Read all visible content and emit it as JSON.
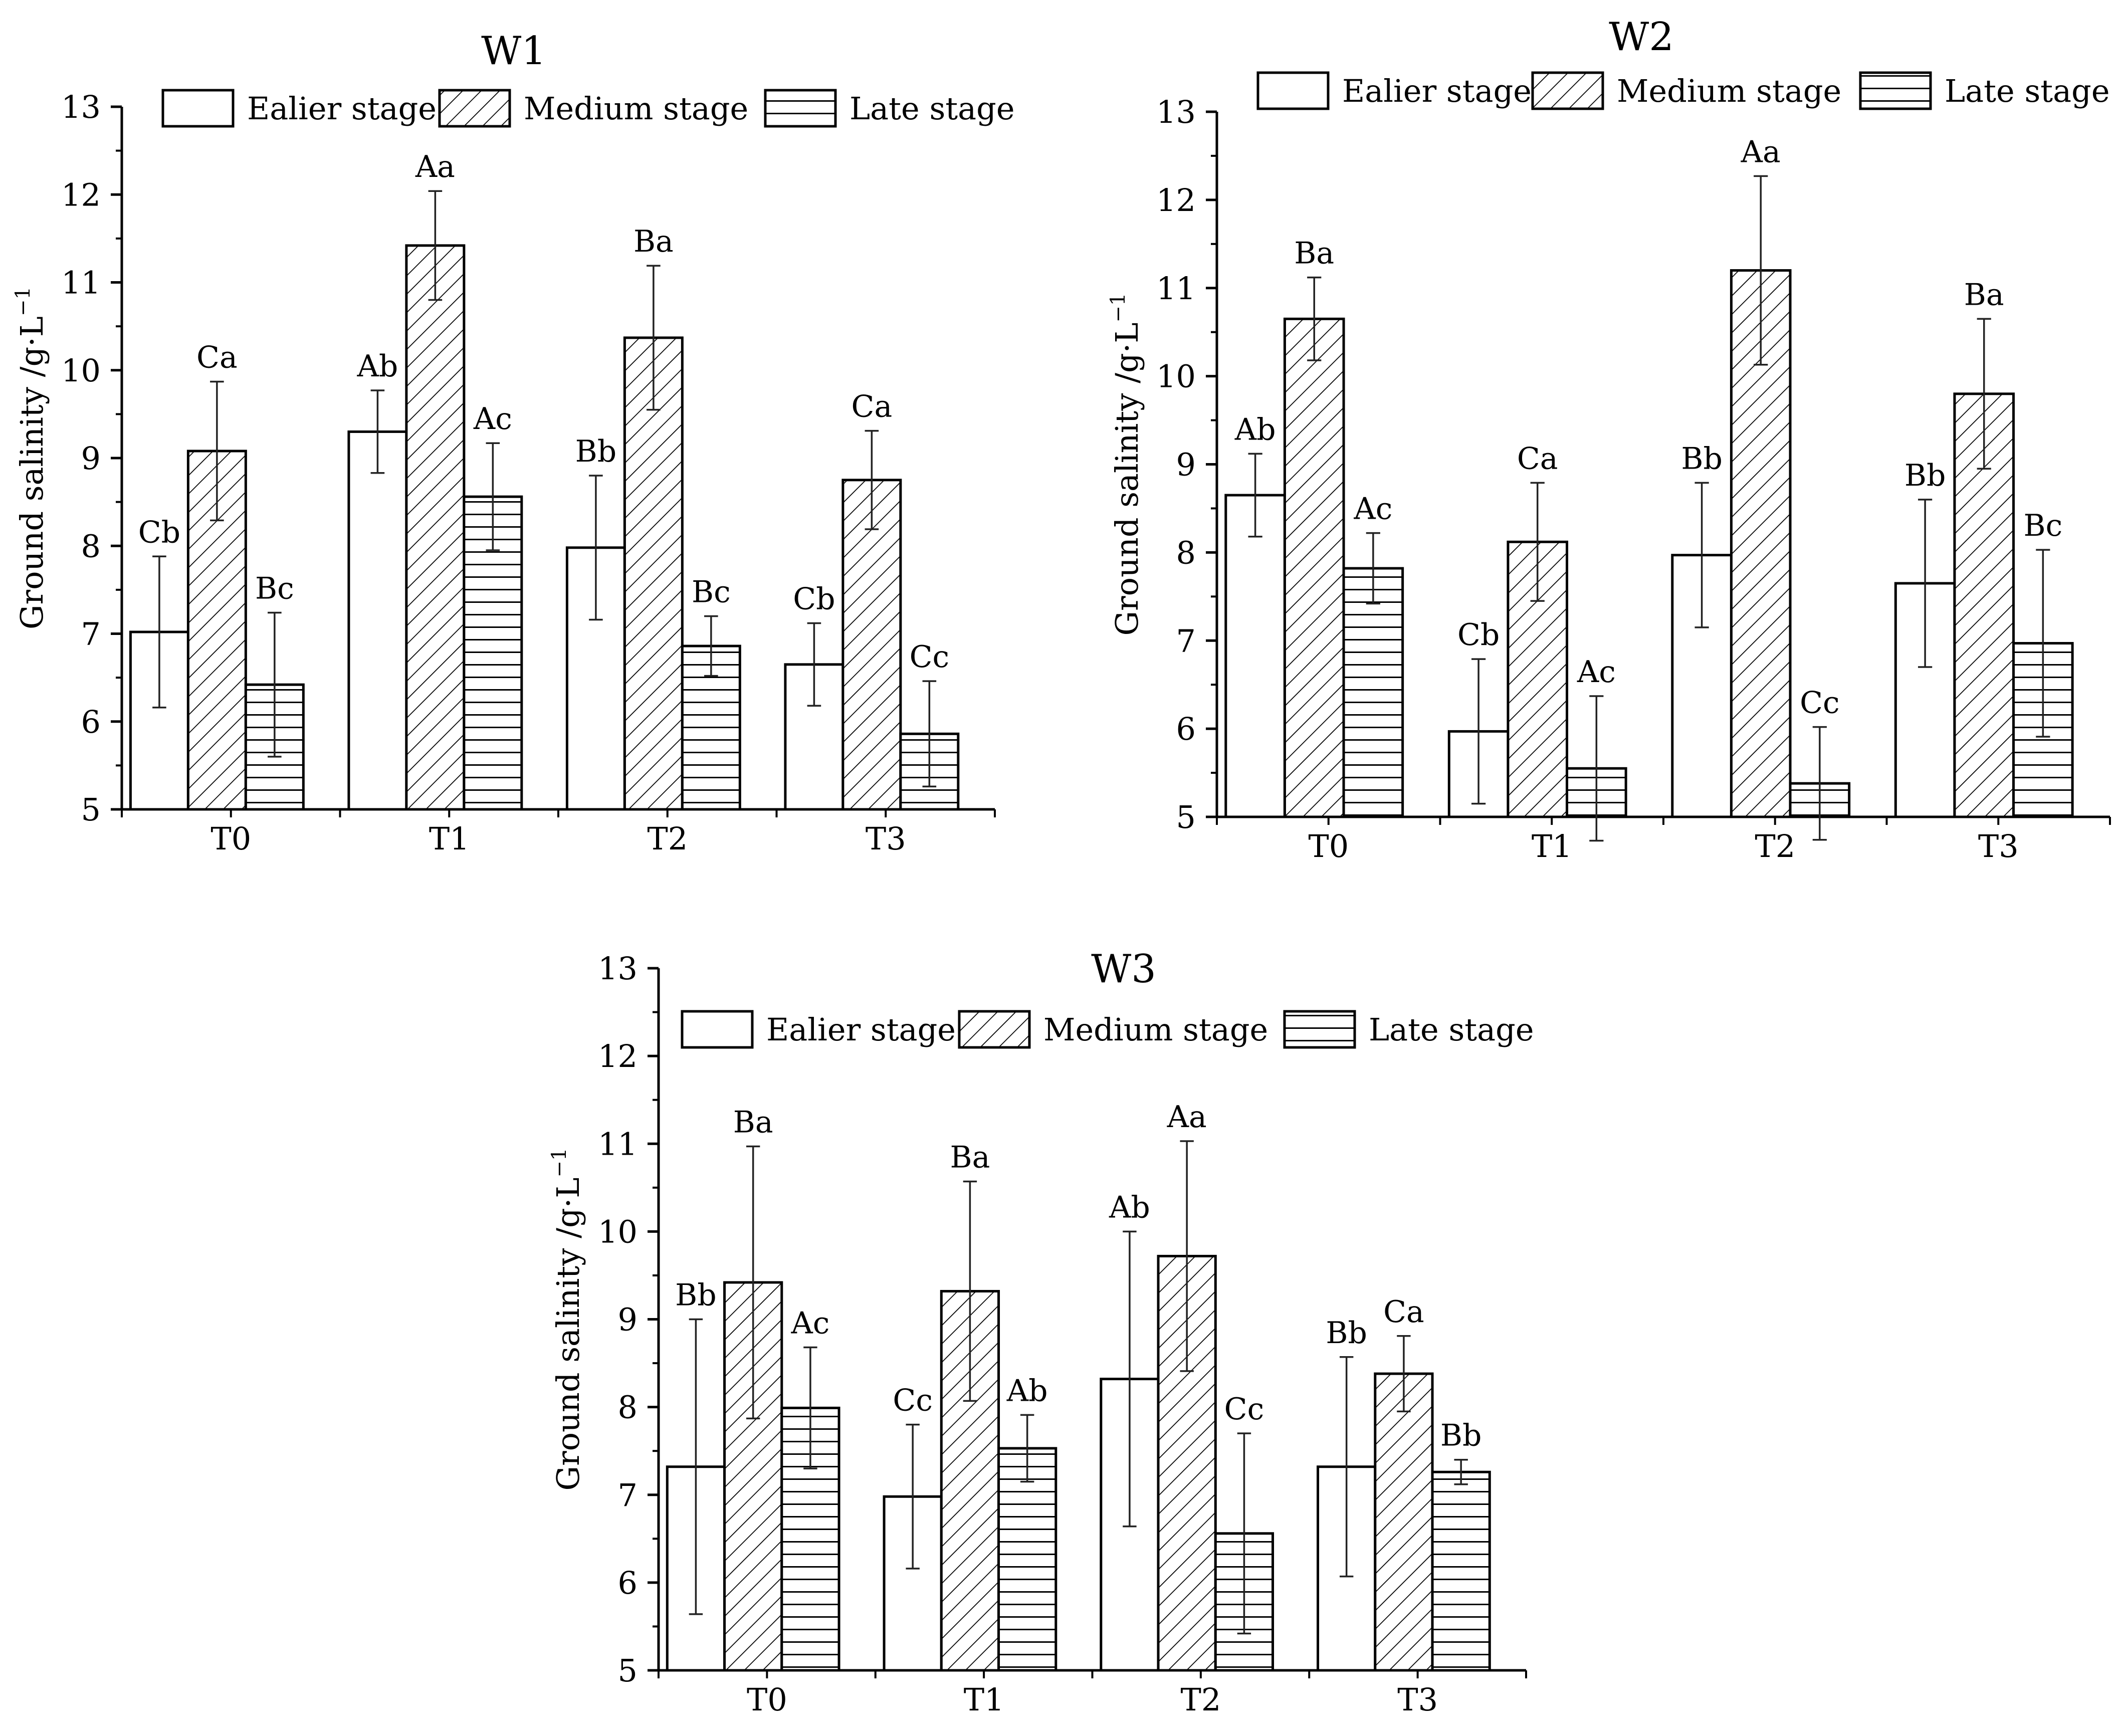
{
  "chart_data": [
    {
      "type": "bar",
      "title": "W1",
      "xlabel": "",
      "ylabel": "Ground salinity /g·L",
      "ylabel_sup": "−1",
      "ylim": [
        5,
        13
      ],
      "yticks": [
        "5",
        "6",
        "7",
        "8",
        "9",
        "10",
        "11",
        "12",
        "13"
      ],
      "categories": [
        "T0",
        "T1",
        "T2",
        "T3"
      ],
      "legend": [
        "Ealier stage",
        "Medium stage",
        "Late stage"
      ],
      "legend_position": "top",
      "series": [
        {
          "name": "Ealier stage",
          "pattern": "none",
          "values": [
            7.02,
            9.3,
            7.98,
            6.65
          ],
          "errors": [
            0.86,
            0.47,
            0.82,
            0.47
          ],
          "labels": [
            "Cb",
            "Ab",
            "Bb",
            "Cb"
          ]
        },
        {
          "name": "Medium stage",
          "pattern": "diagonal",
          "values": [
            9.08,
            11.42,
            10.37,
            8.75
          ],
          "errors": [
            0.79,
            0.62,
            0.82,
            0.56
          ],
          "labels": [
            "Ca",
            "Aa",
            "Ba",
            "Ca"
          ]
        },
        {
          "name": "Late stage",
          "pattern": "horizontal",
          "values": [
            6.42,
            8.56,
            6.86,
            5.86
          ],
          "errors": [
            0.82,
            0.61,
            0.34,
            0.6
          ],
          "labels": [
            "Bc",
            "Ac",
            "Bc",
            "Cc"
          ]
        }
      ]
    },
    {
      "type": "bar",
      "title": "W2",
      "xlabel": "",
      "ylabel": "Ground salinity /g·L",
      "ylabel_sup": "−1",
      "ylim": [
        5,
        13
      ],
      "yticks": [
        "5",
        "6",
        "7",
        "8",
        "9",
        "10",
        "11",
        "12",
        "13"
      ],
      "categories": [
        "T0",
        "T1",
        "T2",
        "T3"
      ],
      "legend": [
        "Ealier stage",
        "Medium stage",
        "Late stage"
      ],
      "legend_position": "top",
      "series": [
        {
          "name": "Ealier stage",
          "pattern": "none",
          "values": [
            8.65,
            5.97,
            7.97,
            7.65
          ],
          "errors": [
            0.47,
            0.82,
            0.82,
            0.95
          ],
          "labels": [
            "Ab",
            "Cb",
            "Bb",
            "Bb"
          ]
        },
        {
          "name": "Medium stage",
          "pattern": "diagonal",
          "values": [
            10.65,
            8.12,
            11.2,
            9.8
          ],
          "errors": [
            0.47,
            0.67,
            1.07,
            0.85
          ],
          "labels": [
            "Ba",
            "Ca",
            "Aa",
            "Ba"
          ]
        },
        {
          "name": "Late stage",
          "pattern": "horizontal",
          "values": [
            7.82,
            5.55,
            5.38,
            6.97
          ],
          "errors": [
            0.4,
            0.82,
            0.64,
            1.06
          ],
          "labels": [
            "Ac",
            "Ac",
            "Cc",
            "Bc"
          ]
        }
      ]
    },
    {
      "type": "bar",
      "title": "W3",
      "xlabel": "",
      "ylabel": "Ground salinity /g·L",
      "ylabel_sup": "−1",
      "ylim": [
        5,
        13
      ],
      "yticks": [
        "5",
        "6",
        "7",
        "8",
        "9",
        "10",
        "11",
        "12",
        "13"
      ],
      "categories": [
        "T0",
        "T1",
        "T2",
        "T3"
      ],
      "legend": [
        "Ealier stage",
        "Medium stage",
        "Late stage"
      ],
      "legend_position": "top",
      "series": [
        {
          "name": "Ealier stage",
          "pattern": "none",
          "values": [
            7.32,
            6.98,
            8.32,
            7.32
          ],
          "errors": [
            1.68,
            0.82,
            1.68,
            1.25
          ],
          "labels": [
            "Bb",
            "Cc",
            "Ab",
            "Bb"
          ]
        },
        {
          "name": "Medium stage",
          "pattern": "diagonal",
          "values": [
            9.42,
            9.32,
            9.72,
            8.38
          ],
          "errors": [
            1.55,
            1.25,
            1.31,
            0.43
          ],
          "labels": [
            "Ba",
            "Ba",
            "Aa",
            "Ca"
          ]
        },
        {
          "name": "Late stage",
          "pattern": "horizontal",
          "values": [
            7.99,
            7.53,
            6.56,
            7.26
          ],
          "errors": [
            0.69,
            0.38,
            1.14,
            0.14
          ],
          "labels": [
            "Ac",
            "Ab",
            "Cc",
            "Bb"
          ]
        }
      ]
    }
  ]
}
